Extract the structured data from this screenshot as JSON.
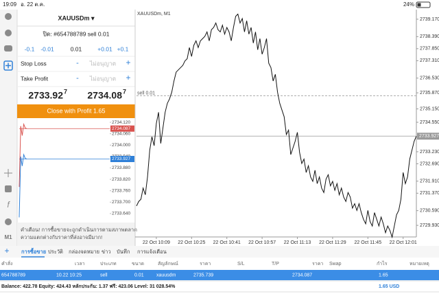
{
  "status_bar": {
    "time": "19:09",
    "date": "อ. 22 ต.ค.",
    "battery": "24%"
  },
  "sidebar": {
    "timeframe": "M1"
  },
  "order_panel": {
    "symbol": "XAUUSDm ▾",
    "position": "ปิด: #654788789 sell 0.01",
    "volume_buttons": [
      "-0.1",
      "-0.01",
      "0.01",
      "+0.01",
      "+0.1"
    ],
    "stop_loss": {
      "label": "Stop Loss",
      "minus": "-",
      "value": "ไม่อนุญาต",
      "plus": "+"
    },
    "take_profit": {
      "label": "Take Profit",
      "minus": "-",
      "value": "ไม่อนุญาต",
      "plus": "+"
    },
    "bid": {
      "price": "2733.92",
      "last_digit": "7"
    },
    "ask": {
      "price": "2734.08",
      "last_digit": "7"
    },
    "close_button": "Close with Profit 1.65",
    "warning": [
      "คำเตือน! การซื้อขายจะถูกดำเนินการตามสภาพตลาด",
      "ความแตกต่างกับราคาที่ส่งอาจมีมาก!"
    ]
  },
  "chart_data": [
    {
      "type": "line",
      "title": "XAUUSDm, M1",
      "xlim": [
        0,
        127
      ],
      "xticks": [
        {
          "value": 9,
          "label": "22 Oct 10:09"
        },
        {
          "value": 25,
          "label": "22 Oct 10:25"
        },
        {
          "value": 41,
          "label": "22 Oct 10:41"
        },
        {
          "value": 57,
          "label": "22 Oct 10:57"
        },
        {
          "value": 73,
          "label": "22 Oct 11:13"
        },
        {
          "value": 89,
          "label": "22 Oct 11:29"
        },
        {
          "value": 105,
          "label": "22 Oct 11:45"
        },
        {
          "value": 121,
          "label": "22 Oct 12:01"
        }
      ],
      "ylim": [
        2729.41,
        2739.6
      ],
      "yticks": [
        {
          "value": 2739.17,
          "label": "2739.170"
        },
        {
          "value": 2738.39,
          "label": "2738.390"
        },
        {
          "value": 2737.85,
          "label": "2737.850"
        },
        {
          "value": 2737.31,
          "label": "2737.310"
        },
        {
          "value": 2736.53,
          "label": "2736.530"
        },
        {
          "value": 2735.87,
          "label": "2735.870"
        },
        {
          "value": 2735.15,
          "label": "2735.150"
        },
        {
          "value": 2734.55,
          "label": "2734.550"
        },
        {
          "value": 2733.23,
          "label": "2733.230"
        },
        {
          "value": 2732.69,
          "label": "2732.690"
        },
        {
          "value": 2731.91,
          "label": "2731.910"
        },
        {
          "value": 2731.37,
          "label": "2731.370"
        },
        {
          "value": 2730.59,
          "label": "2730.590"
        },
        {
          "value": 2729.93,
          "label": "2729.930"
        }
      ],
      "series": [
        {
          "color": "#111111",
          "values": [
            2730.8,
            2731.0,
            2731.1,
            2731.6,
            2731.3,
            2732.1,
            2733.3,
            2733.9,
            2733.5,
            2734.5,
            2735.0,
            2733.6,
            2734.3,
            2735.0,
            2735.4,
            2735.6,
            2735.9,
            2736.4,
            2736.8,
            2736.9,
            2737.0,
            2737.1,
            2737.3,
            2737.4,
            2737.9,
            2737.5,
            2738.0,
            2738.2,
            2737.9,
            2738.2,
            2738.3,
            2738.4,
            2738.6,
            2738.2,
            2738.7,
            2738.8,
            2739.0,
            2738.7,
            2738.6,
            2738.9,
            2738.5,
            2738.8,
            2738.6,
            2738.2,
            2738.8,
            2739.3,
            2739.4,
            2739.0,
            2739.2,
            2738.6,
            2739.1,
            2738.5,
            2738.8,
            2738.1,
            2738.6,
            2737.8,
            2738.3,
            2737.6,
            2737.9,
            2738.3,
            2737.2,
            2737.0,
            2736.4,
            2736.7,
            2735.9,
            2735.4,
            2735.1,
            2734.8,
            2734.0,
            2734.2,
            2733.1,
            2733.4,
            2733.7,
            2734.1,
            2733.2,
            2732.7,
            2732.9,
            2732.3,
            2732.6,
            2732.1,
            2731.9,
            2732.4,
            2731.8,
            2732.1,
            2731.6,
            2731.4,
            2732.0,
            2732.2,
            2731.7,
            2731.9,
            2731.5,
            2731.8,
            2731.3,
            2731.6,
            2731.2,
            2731.0,
            2731.4,
            2731.2,
            2730.7,
            2730.9,
            2730.6,
            2730.9,
            2730.5,
            2730.2,
            2730.0,
            2730.6,
            2730.1,
            2729.9,
            2730.5,
            2730.2,
            2729.9,
            2730.3,
            2730.0,
            2729.6,
            2729.9,
            2729.7,
            2729.4,
            2729.9,
            2730.4,
            2730.6,
            2731.1,
            2732.3,
            2731.8,
            2732.1,
            2732.9,
            2733.3,
            2733.7,
            2733.93
          ]
        }
      ],
      "current_price": 2733.927,
      "order_line": {
        "label": "sell 0.01",
        "value": 2735.739
      }
    },
    {
      "type": "line",
      "xlim": [
        0,
        60
      ],
      "ylim": [
        2733.6,
        2734.142
      ],
      "yticks": [
        {
          "value": 2734.12,
          "label": "2734.120"
        },
        {
          "value": 2734.06,
          "label": "2734.060"
        },
        {
          "value": 2734.0,
          "label": "2734.000"
        },
        {
          "value": 2733.94,
          "label": "2733.940"
        },
        {
          "value": 2733.88,
          "label": "2733.880"
        },
        {
          "value": 2733.82,
          "label": "2733.820"
        },
        {
          "value": 2733.76,
          "label": "2733.760"
        },
        {
          "value": 2733.7,
          "label": "2733.700"
        },
        {
          "value": 2733.64,
          "label": "2733.640"
        }
      ],
      "series": [
        {
          "color": "#d9534f",
          "values": [
            2733.78,
            2734.1,
            2734.05,
            2734.11,
            2734.09,
            2734.087
          ]
        },
        {
          "color": "#2f80d8",
          "values": [
            2733.62,
            2733.94,
            2733.89,
            2733.95,
            2733.93,
            2733.927
          ]
        }
      ],
      "current_prices": [
        2734.087,
        2733.927
      ]
    }
  ],
  "trade_table": {
    "tabs": [
      "การซื้อขาย",
      "ประวัติ",
      "กล่องจดหมาย",
      "ข่าว",
      "บันทึก",
      "การแจ้งเตือน"
    ],
    "active_tab": 0,
    "columns": [
      "คำสั่ง",
      "เวลา",
      "ประเภท",
      "ขนาด",
      "สัญลักษณ์",
      "ราคา",
      "S/L",
      "T/P",
      "ราคา",
      "Swap",
      "กำไร",
      "หมายเหตุ"
    ],
    "rows": [
      [
        "654788789",
        "10.22 10:25",
        "sell",
        "0.01",
        "xauusdm",
        "2735.739",
        null,
        null,
        "2734.087",
        null,
        "1.65",
        null
      ]
    ],
    "summary": "Balance: 422.78 Equity: 424.43 หลักประกัน: 1.37 ฟรี: 423.06 Level: 31 028.54%",
    "total_profit": "1.65 USD"
  }
}
